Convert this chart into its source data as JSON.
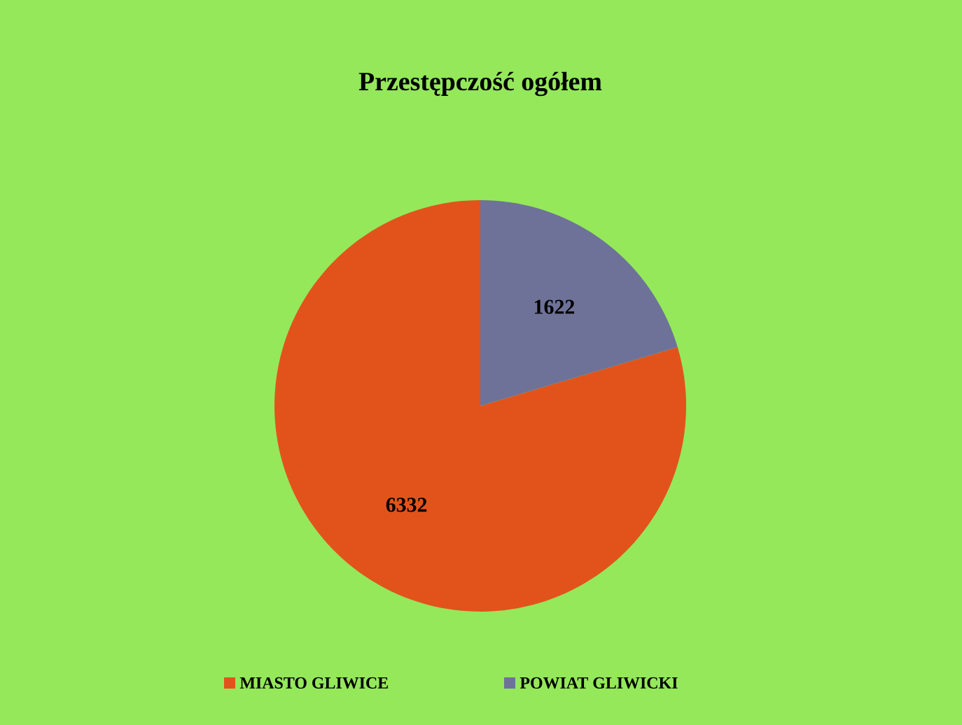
{
  "chart_data": {
    "type": "pie",
    "title": "Przestępczość ogółem",
    "categories": [
      "MIASTO GLIWICE",
      "POWIAT GLIWICKI"
    ],
    "values": [
      6332,
      1622
    ],
    "colors": [
      "#e2531c",
      "#6e7299"
    ],
    "data_labels": true,
    "legend": "bottom"
  }
}
